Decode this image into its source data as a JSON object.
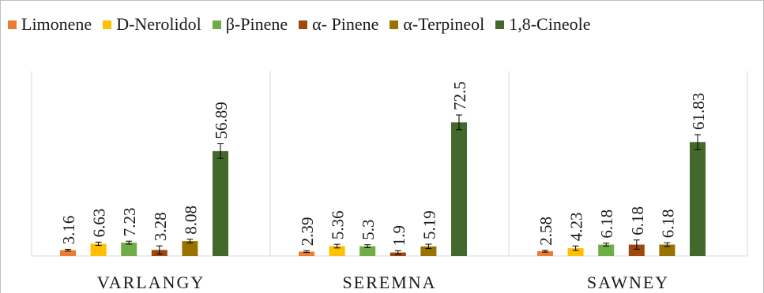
{
  "chart_data": {
    "type": "bar",
    "categories": [
      "VARLANGY",
      "SEREMNA",
      "SAWNEY"
    ],
    "series": [
      {
        "name": "Limonene",
        "color": "#ed7d31",
        "values": [
          3.16,
          2.39,
          2.58
        ]
      },
      {
        "name": "D-Nerolidol",
        "color": "#ffc000",
        "values": [
          6.63,
          5.36,
          4.23
        ]
      },
      {
        "name": "β-Pinene",
        "color": "#70ad47",
        "values": [
          7.23,
          5.3,
          6.18
        ]
      },
      {
        "name": "α- Pinene",
        "color": "#9e480e",
        "values": [
          3.28,
          1.9,
          6.18
        ]
      },
      {
        "name": "α-Terpineol",
        "color": "#997300",
        "values": [
          8.08,
          5.19,
          6.18
        ]
      },
      {
        "name": "1,8-Cineole",
        "color": "#43682b",
        "values": [
          56.89,
          72.5,
          61.83
        ]
      }
    ],
    "data_labels": [
      [
        "3.16",
        "6.63",
        "7.23",
        "3.28",
        "8.08",
        "56.89"
      ],
      [
        "2.39",
        "5.36",
        "5.3",
        "1.9",
        "5.19",
        "72.5"
      ],
      [
        "2.58",
        "4.23",
        "6.18",
        "6.18",
        "6.18",
        "61.83"
      ]
    ],
    "error_bars": [
      [
        0.5,
        0.9,
        0.8,
        2.2,
        1.0,
        4.0
      ],
      [
        0.5,
        1.0,
        0.8,
        1.0,
        1.2,
        4.0
      ],
      [
        0.5,
        1.2,
        0.8,
        2.5,
        1.0,
        4.0
      ]
    ],
    "ylim": [
      0,
      80
    ],
    "title": "",
    "xlabel": "",
    "ylabel": "",
    "grid": false,
    "legend_position": "top"
  }
}
